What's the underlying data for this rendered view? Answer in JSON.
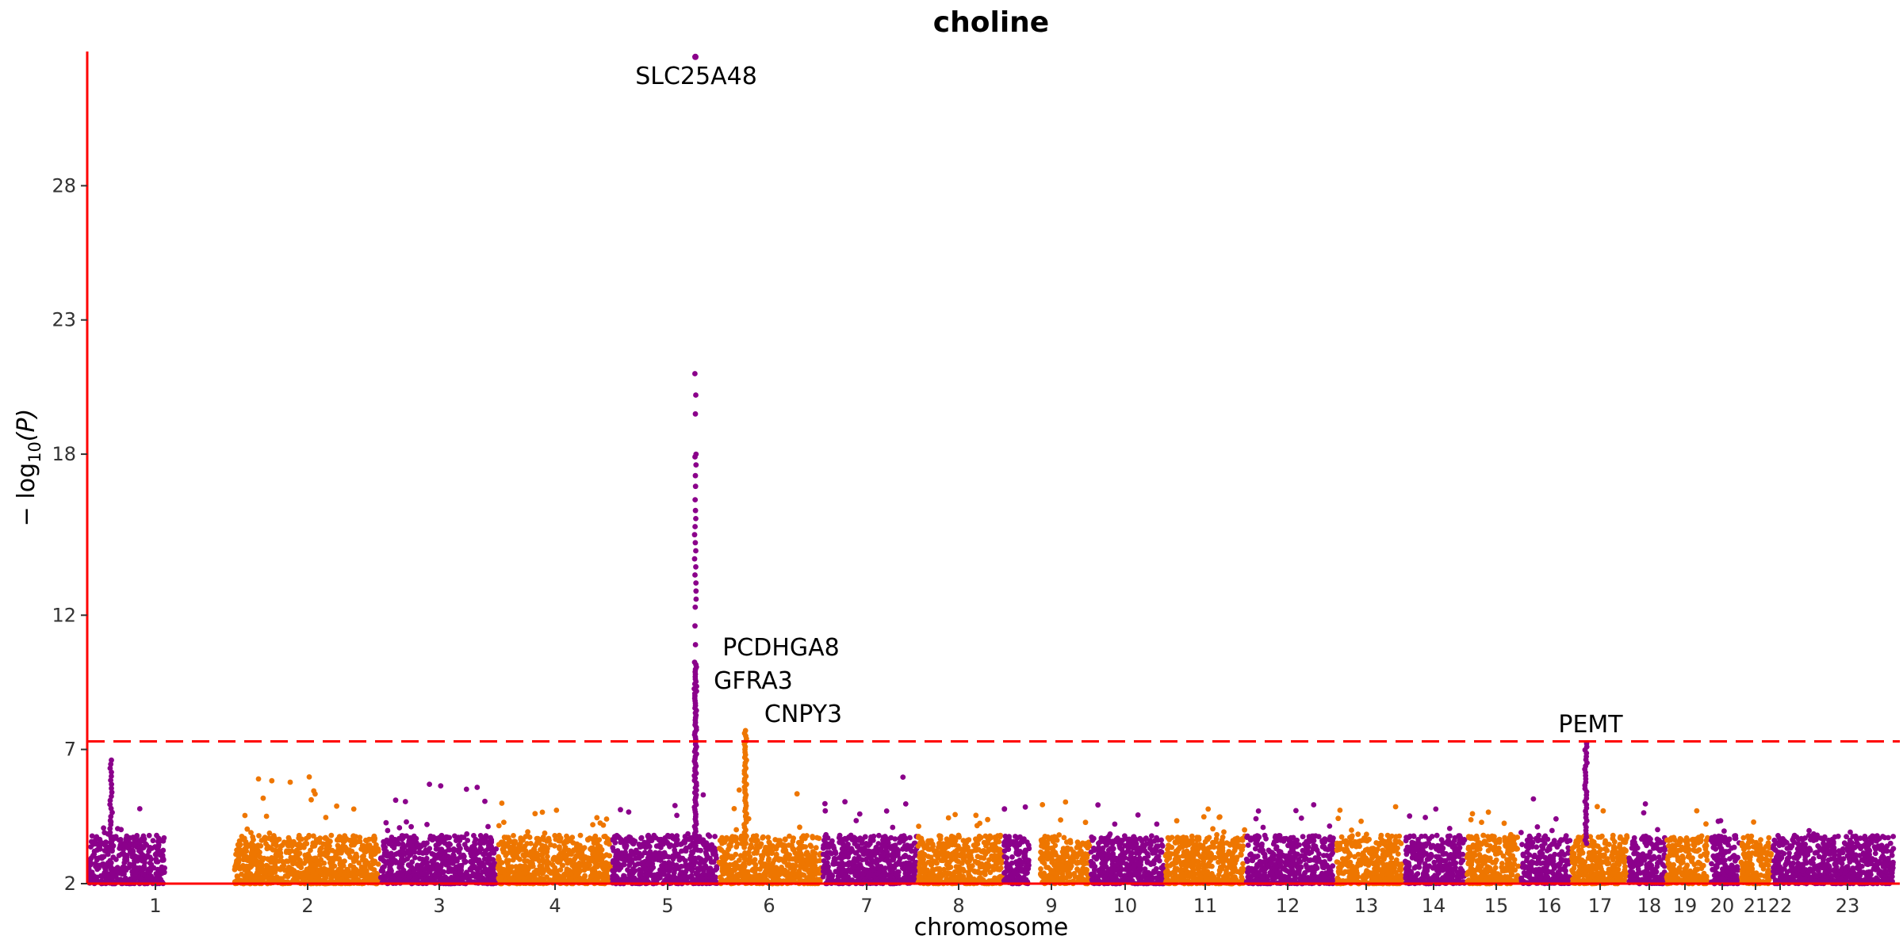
{
  "chart_data": {
    "type": "scatter",
    "subtype": "manhattan",
    "title": "choline",
    "xlabel": "chromosome",
    "ylabel": "− log10(P)",
    "ylabel_parts": {
      "prefix": "− log",
      "subscript": "10",
      "suffix": "(P)"
    },
    "y_ticks": [
      7,
      12,
      18,
      23,
      28
    ],
    "y_ticks_shown": [
      "2",
      "7",
      "12",
      "18",
      "23",
      "28"
    ],
    "ylim": [
      2,
      33
    ],
    "grid": false,
    "legend": "none",
    "colors": {
      "odd_chromosome": "#8b008b",
      "even_chromosome": "#ee7600",
      "axis": "#ff0000",
      "threshold_line": "#ff0000"
    },
    "significance_threshold": 7.3,
    "chromosomes": [
      {
        "label": "1",
        "color_group": "odd",
        "base_max": 5.2
      },
      {
        "label": "2",
        "color_group": "even",
        "base_max": 6.0
      },
      {
        "label": "3",
        "color_group": "odd",
        "base_max": 5.8
      },
      {
        "label": "4",
        "color_group": "even",
        "base_max": 5.0
      },
      {
        "label": "5",
        "color_group": "odd",
        "base_max": 5.5
      },
      {
        "label": "6",
        "color_group": "even",
        "base_max": 5.6
      },
      {
        "label": "7",
        "color_group": "odd",
        "base_max": 6.4
      },
      {
        "label": "8",
        "color_group": "even",
        "base_max": 5.0
      },
      {
        "label": "9",
        "color_group": "odd",
        "base_max": 5.1
      },
      {
        "label": "10",
        "color_group": "even",
        "base_max": 5.8
      },
      {
        "label": "11",
        "color_group": "odd",
        "base_max": 5.1
      },
      {
        "label": "12",
        "color_group": "even",
        "base_max": 4.8
      },
      {
        "label": "13",
        "color_group": "odd",
        "base_max": 5.0
      },
      {
        "label": "14",
        "color_group": "even",
        "base_max": 5.0
      },
      {
        "label": "15",
        "color_group": "odd",
        "base_max": 4.9
      },
      {
        "label": "16",
        "color_group": "even",
        "base_max": 4.8
      },
      {
        "label": "17",
        "color_group": "odd",
        "base_max": 5.2
      },
      {
        "label": "18",
        "color_group": "even",
        "base_max": 5.0
      },
      {
        "label": "19",
        "color_group": "odd",
        "base_max": 5.3
      },
      {
        "label": "20",
        "color_group": "even",
        "base_max": 4.9
      },
      {
        "label": "21",
        "color_group": "odd",
        "base_max": 4.5
      },
      {
        "label": "22",
        "color_group": "even",
        "base_max": 4.6
      },
      {
        "label": "23",
        "color_group": "odd",
        "base_max": 4.0
      }
    ],
    "peaks": [
      {
        "gene": "SLC25A48",
        "chromosome": "5",
        "max_neglog10p": 32.8
      },
      {
        "gene": "PCDHGA8",
        "chromosome": "5",
        "max_neglog10p": 10.3
      },
      {
        "gene": "GFRA3",
        "chromosome": "5",
        "max_neglog10p": 9.9
      },
      {
        "gene": "CNPY3",
        "chromosome": "6",
        "max_neglog10p": 7.7
      },
      {
        "gene": "PEMT",
        "chromosome": "17",
        "max_neglog10p": 7.3
      }
    ]
  }
}
